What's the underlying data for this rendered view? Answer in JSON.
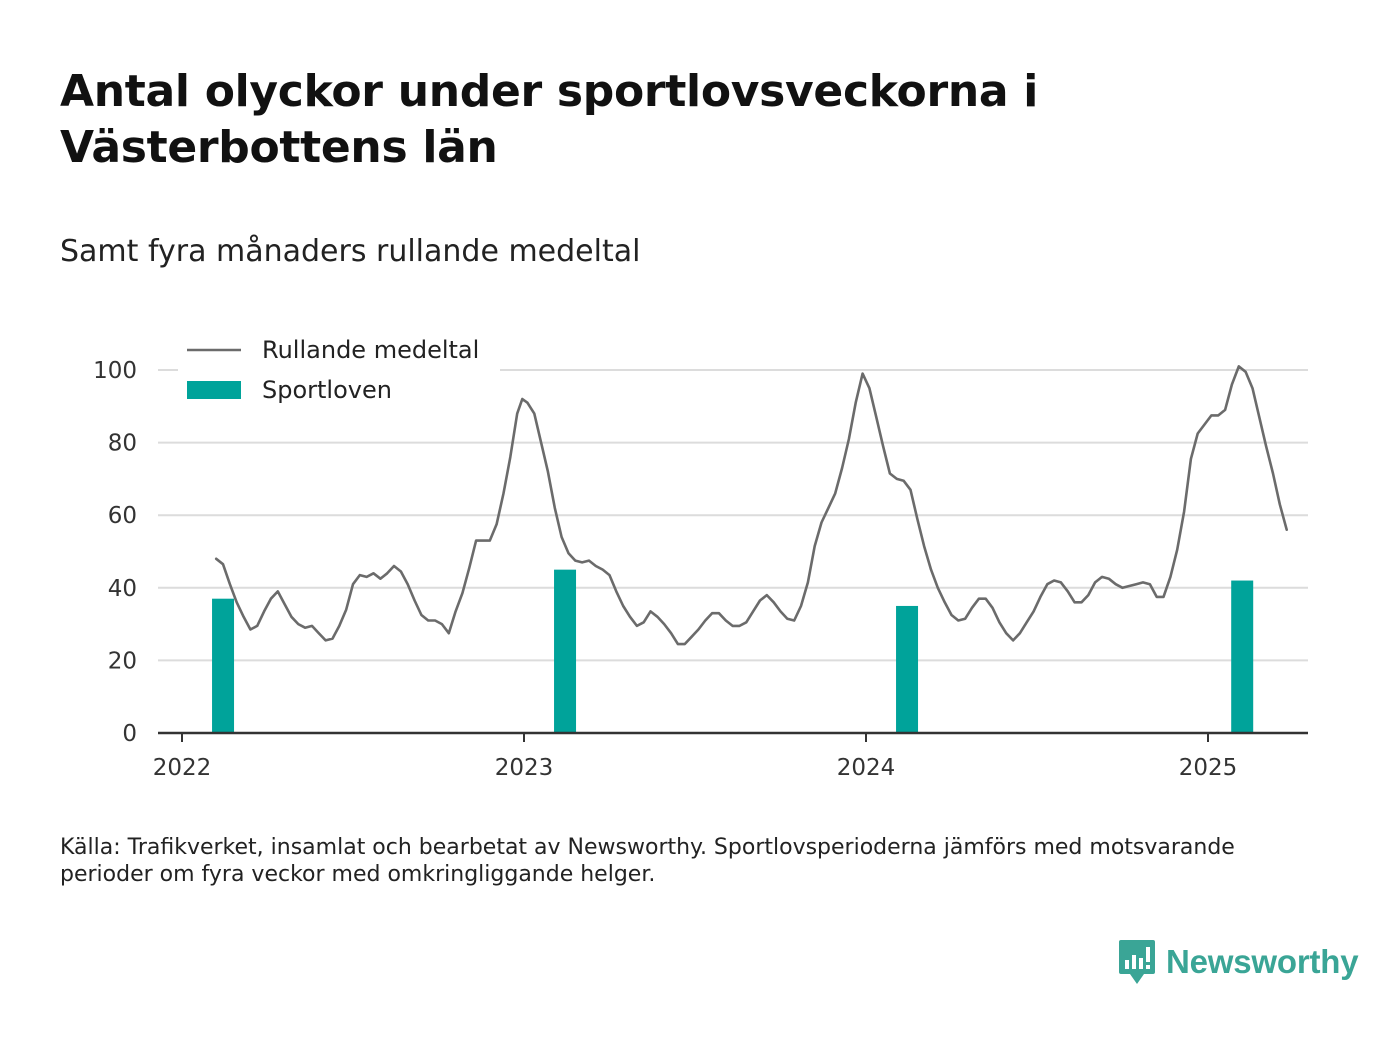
{
  "title": "Antal olyckor under sportlovsveckorna i Västerbottens län",
  "subtitle": "Samt fyra månaders rullande medeltal",
  "note": "Källa: Trafikverket, insamlat och bearbetat av Newsworthy. Sportlovsperioderna jämförs med motsvarande perioder om fyra veckor med omkringliggande helger.",
  "brand": {
    "name": "Newsworthy",
    "color": "#3aa596",
    "icon": "bar-chart-speech-bubble-icon"
  },
  "colors": {
    "line": "#6b6b6b",
    "bar": "#00a39a",
    "grid": "#dcdcdc",
    "axis": "#333333"
  },
  "chart_data": {
    "type": "bar+line",
    "legend": {
      "placement": "top-left",
      "entries": [
        "Rullande medeltal",
        "Sportloven"
      ]
    },
    "xlabel": "",
    "ylabel": "",
    "x_ticks": [
      "2022",
      "2023",
      "2024",
      "2025"
    ],
    "xlim": [
      2022.0,
      2025.29
    ],
    "ylim": [
      0,
      100
    ],
    "y_ticks": [
      0,
      20,
      40,
      60,
      80,
      100
    ],
    "grid": true,
    "bars": {
      "name": "Sportloven",
      "x": [
        2022.12,
        2023.12,
        2024.12,
        2025.1
      ],
      "values": [
        37,
        45,
        35,
        42
      ]
    },
    "line": {
      "name": "Rullande medeltal",
      "points": [
        [
          2022.1,
          48
        ],
        [
          2022.12,
          46.5
        ],
        [
          2022.14,
          41
        ],
        [
          2022.16,
          36
        ],
        [
          2022.18,
          32
        ],
        [
          2022.2,
          28.5
        ],
        [
          2022.22,
          29.5
        ],
        [
          2022.24,
          33.5
        ],
        [
          2022.26,
          37
        ],
        [
          2022.28,
          39
        ],
        [
          2022.3,
          35.5
        ],
        [
          2022.32,
          32
        ],
        [
          2022.34,
          30
        ],
        [
          2022.36,
          29
        ],
        [
          2022.38,
          29.5
        ],
        [
          2022.4,
          27.5
        ],
        [
          2022.42,
          25.5
        ],
        [
          2022.44,
          26
        ],
        [
          2022.46,
          29.5
        ],
        [
          2022.48,
          34
        ],
        [
          2022.5,
          41
        ],
        [
          2022.52,
          43.5
        ],
        [
          2022.54,
          43
        ],
        [
          2022.56,
          44
        ],
        [
          2022.58,
          42.5
        ],
        [
          2022.6,
          44
        ],
        [
          2022.62,
          46
        ],
        [
          2022.64,
          44.5
        ],
        [
          2022.66,
          41
        ],
        [
          2022.68,
          36.5
        ],
        [
          2022.7,
          32.5
        ],
        [
          2022.72,
          31
        ],
        [
          2022.74,
          31
        ],
        [
          2022.76,
          30
        ],
        [
          2022.78,
          27.5
        ],
        [
          2022.8,
          33.5
        ],
        [
          2022.82,
          38.5
        ],
        [
          2022.84,
          45.5
        ],
        [
          2022.86,
          53
        ],
        [
          2022.88,
          53
        ],
        [
          2022.9,
          53
        ],
        [
          2022.92,
          57.5
        ],
        [
          2022.94,
          66
        ],
        [
          2022.96,
          76
        ],
        [
          2022.98,
          88
        ],
        [
          2022.995,
          92
        ],
        [
          2023.01,
          91
        ],
        [
          2023.03,
          88
        ],
        [
          2023.05,
          80
        ],
        [
          2023.07,
          72
        ],
        [
          2023.09,
          62
        ],
        [
          2023.11,
          54
        ],
        [
          2023.13,
          49.5
        ],
        [
          2023.15,
          47.5
        ],
        [
          2023.17,
          47
        ],
        [
          2023.19,
          47.5
        ],
        [
          2023.21,
          46
        ],
        [
          2023.23,
          45
        ],
        [
          2023.25,
          43.5
        ],
        [
          2023.27,
          39
        ],
        [
          2023.29,
          35
        ],
        [
          2023.31,
          32
        ],
        [
          2023.33,
          29.5
        ],
        [
          2023.35,
          30.5
        ],
        [
          2023.37,
          33.5
        ],
        [
          2023.39,
          32
        ],
        [
          2023.41,
          30
        ],
        [
          2023.43,
          27.5
        ],
        [
          2023.45,
          24.5
        ],
        [
          2023.47,
          24.5
        ],
        [
          2023.49,
          26.5
        ],
        [
          2023.51,
          28.5
        ],
        [
          2023.53,
          31
        ],
        [
          2023.55,
          33
        ],
        [
          2023.57,
          33
        ],
        [
          2023.59,
          31
        ],
        [
          2023.61,
          29.5
        ],
        [
          2023.63,
          29.5
        ],
        [
          2023.65,
          30.5
        ],
        [
          2023.67,
          33.5
        ],
        [
          2023.69,
          36.5
        ],
        [
          2023.71,
          38
        ],
        [
          2023.73,
          36
        ],
        [
          2023.75,
          33.5
        ],
        [
          2023.77,
          31.5
        ],
        [
          2023.79,
          31
        ],
        [
          2023.81,
          35
        ],
        [
          2023.83,
          41.5
        ],
        [
          2023.85,
          51.5
        ],
        [
          2023.87,
          58
        ],
        [
          2023.89,
          62
        ],
        [
          2023.91,
          66
        ],
        [
          2023.93,
          73
        ],
        [
          2023.95,
          81
        ],
        [
          2023.97,
          91
        ],
        [
          2023.99,
          99
        ],
        [
          2024.01,
          95
        ],
        [
          2024.03,
          87
        ],
        [
          2024.05,
          79
        ],
        [
          2024.07,
          71.5
        ],
        [
          2024.09,
          70
        ],
        [
          2024.11,
          69.5
        ],
        [
          2024.13,
          67
        ],
        [
          2024.15,
          59
        ],
        [
          2024.17,
          51.5
        ],
        [
          2024.19,
          45
        ],
        [
          2024.21,
          40
        ],
        [
          2024.23,
          36
        ],
        [
          2024.25,
          32.5
        ],
        [
          2024.27,
          31
        ],
        [
          2024.29,
          31.5
        ],
        [
          2024.31,
          34.5
        ],
        [
          2024.33,
          37
        ],
        [
          2024.35,
          37
        ],
        [
          2024.37,
          34.5
        ],
        [
          2024.39,
          30.5
        ],
        [
          2024.41,
          27.5
        ],
        [
          2024.43,
          25.5
        ],
        [
          2024.45,
          27.5
        ],
        [
          2024.47,
          30.5
        ],
        [
          2024.49,
          33.5
        ],
        [
          2024.51,
          37.5
        ],
        [
          2024.53,
          41
        ],
        [
          2024.55,
          42
        ],
        [
          2024.57,
          41.5
        ],
        [
          2024.59,
          39
        ],
        [
          2024.61,
          36
        ],
        [
          2024.63,
          36
        ],
        [
          2024.65,
          38
        ],
        [
          2024.67,
          41.5
        ],
        [
          2024.69,
          43
        ],
        [
          2024.71,
          42.5
        ],
        [
          2024.73,
          41
        ],
        [
          2024.75,
          40
        ],
        [
          2024.77,
          40.5
        ],
        [
          2024.79,
          41
        ],
        [
          2024.81,
          41.5
        ],
        [
          2024.83,
          41
        ],
        [
          2024.85,
          37.5
        ],
        [
          2024.87,
          37.5
        ],
        [
          2024.89,
          43
        ],
        [
          2024.91,
          50.5
        ],
        [
          2024.93,
          61
        ],
        [
          2024.95,
          75.5
        ],
        [
          2024.97,
          82.5
        ],
        [
          2024.99,
          85
        ],
        [
          2025.01,
          87.5
        ],
        [
          2025.03,
          87.5
        ],
        [
          2025.05,
          89
        ],
        [
          2025.07,
          96
        ],
        [
          2025.09,
          101
        ],
        [
          2025.11,
          99.5
        ],
        [
          2025.13,
          95
        ],
        [
          2025.15,
          87
        ],
        [
          2025.17,
          79
        ],
        [
          2025.19,
          71.5
        ],
        [
          2025.21,
          63
        ],
        [
          2025.23,
          56
        ]
      ]
    }
  }
}
